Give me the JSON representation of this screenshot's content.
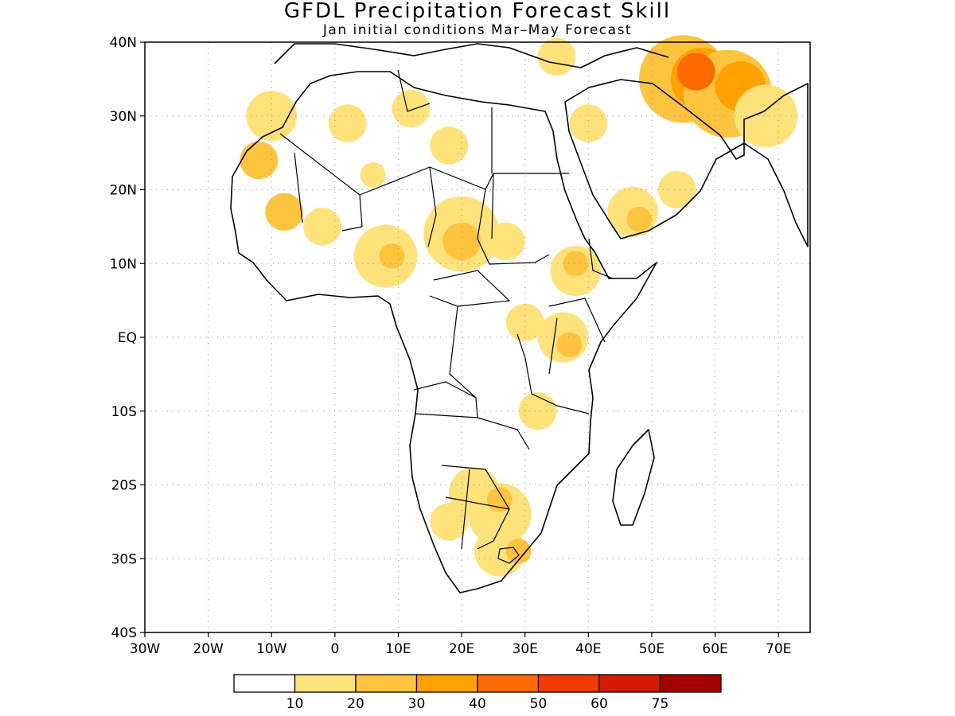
{
  "title": "GFDL Precipitation Forecast Skill",
  "subtitle": "Jan initial conditions  Mar–May Forecast",
  "axes": {
    "x_ticks": [
      "30W",
      "20W",
      "10W",
      "0",
      "10E",
      "20E",
      "30E",
      "40E",
      "50E",
      "60E",
      "70E"
    ],
    "x_values": [
      -30,
      -20,
      -10,
      0,
      10,
      20,
      30,
      40,
      50,
      60,
      70
    ],
    "y_ticks": [
      "40N",
      "30N",
      "20N",
      "10N",
      "EQ",
      "10S",
      "20S",
      "30S",
      "40S"
    ],
    "y_values": [
      40,
      30,
      20,
      10,
      0,
      -10,
      -20,
      -30,
      -40
    ],
    "lon_range": [
      -30,
      75
    ],
    "lat_range": [
      -40,
      40
    ],
    "grid": "dotted"
  },
  "colorbar": {
    "labels": [
      "10",
      "20",
      "30",
      "40",
      "50",
      "60",
      "75"
    ],
    "colors": [
      "#ffffff",
      "#ffe27a",
      "#ffc43d",
      "#ffa100",
      "#ff6a00",
      "#f23a00",
      "#d61a00",
      "#a50000"
    ]
  },
  "skill_regions": [
    {
      "lon": -10,
      "lat": 30,
      "r": 4,
      "level": 1
    },
    {
      "lon": 2,
      "lat": 29,
      "r": 3,
      "level": 1
    },
    {
      "lon": -12,
      "lat": 24,
      "r": 3,
      "level": 2
    },
    {
      "lon": -8,
      "lat": 17,
      "r": 3,
      "level": 2
    },
    {
      "lon": -2,
      "lat": 15,
      "r": 3,
      "level": 1
    },
    {
      "lon": 12,
      "lat": 31,
      "r": 3,
      "level": 1
    },
    {
      "lon": 18,
      "lat": 26,
      "r": 3,
      "level": 1
    },
    {
      "lon": 6,
      "lat": 22,
      "r": 2,
      "level": 1
    },
    {
      "lon": 20,
      "lat": 14,
      "r": 6,
      "level": 1
    },
    {
      "lon": 20,
      "lat": 13,
      "r": 3,
      "level": 2
    },
    {
      "lon": 8,
      "lat": 11,
      "r": 5,
      "level": 1
    },
    {
      "lon": 9,
      "lat": 11,
      "r": 2,
      "level": 2
    },
    {
      "lon": 27,
      "lat": 13,
      "r": 3,
      "level": 1
    },
    {
      "lon": 38,
      "lat": 9,
      "r": 4,
      "level": 1
    },
    {
      "lon": 38,
      "lat": 10,
      "r": 2,
      "level": 2
    },
    {
      "lon": 30,
      "lat": 2,
      "r": 3,
      "level": 1
    },
    {
      "lon": 36,
      "lat": 0,
      "r": 4,
      "level": 1
    },
    {
      "lon": 37,
      "lat": -1,
      "r": 2,
      "level": 2
    },
    {
      "lon": 32,
      "lat": -10,
      "r": 3,
      "level": 1
    },
    {
      "lon": 22,
      "lat": -21,
      "r": 4,
      "level": 1
    },
    {
      "lon": 26,
      "lat": -24,
      "r": 5,
      "level": 1
    },
    {
      "lon": 26,
      "lat": -22,
      "r": 2,
      "level": 2
    },
    {
      "lon": 18,
      "lat": -25,
      "r": 3,
      "level": 1
    },
    {
      "lon": 26,
      "lat": -29,
      "r": 4,
      "level": 1
    },
    {
      "lon": 29,
      "lat": -29,
      "r": 2,
      "level": 2
    },
    {
      "lon": 40,
      "lat": 29,
      "r": 3,
      "level": 1
    },
    {
      "lon": 47,
      "lat": 17,
      "r": 4,
      "level": 1
    },
    {
      "lon": 48,
      "lat": 16,
      "r": 2,
      "level": 2
    },
    {
      "lon": 54,
      "lat": 20,
      "r": 3,
      "level": 1
    },
    {
      "lon": 55,
      "lat": 35,
      "r": 7,
      "level": 2
    },
    {
      "lon": 58,
      "lat": 35,
      "r": 5,
      "level": 3
    },
    {
      "lon": 62,
      "lat": 33,
      "r": 7,
      "level": 2
    },
    {
      "lon": 64,
      "lat": 34,
      "r": 4,
      "level": 3
    },
    {
      "lon": 68,
      "lat": 30,
      "r": 5,
      "level": 1
    },
    {
      "lon": 57,
      "lat": 36,
      "r": 3,
      "level": 4
    },
    {
      "lon": 35,
      "lat": 38,
      "r": 3,
      "level": 1
    }
  ]
}
